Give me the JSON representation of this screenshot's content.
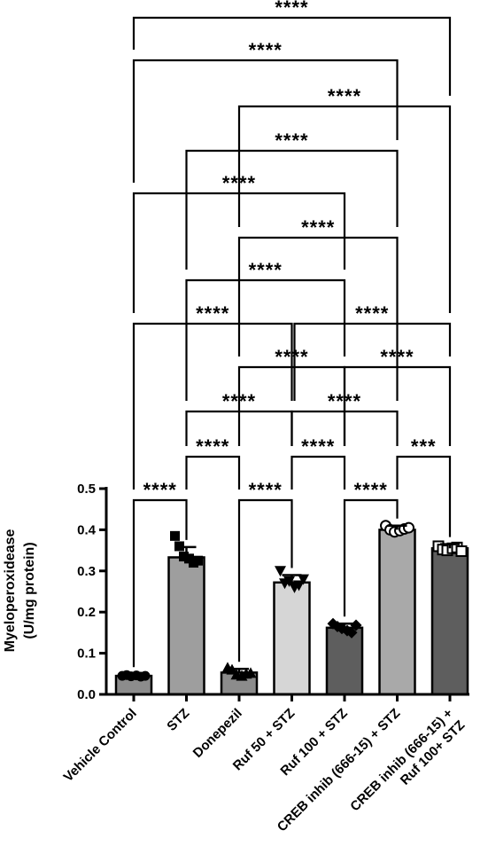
{
  "chart_data": {
    "type": "bar",
    "ylabel_line1": "Myeloperoxidease",
    "ylabel_line2": "(U/mg protein)",
    "ylim": [
      0,
      0.5
    ],
    "yticks": [
      "0.0",
      "0.1",
      "0.2",
      "0.3",
      "0.4",
      "0.5"
    ],
    "categories": [
      "Vehicle Control",
      "STZ",
      "Donepezil",
      "Ruf 50 + STZ",
      "Ruf 100 + STZ",
      "CREB inhib (666-15) + STZ",
      [
        "CREB inhib (666-15) +",
        "Ruf 100+ STZ"
      ]
    ],
    "values": [
      0.045,
      0.333,
      0.053,
      0.272,
      0.162,
      0.4,
      0.355
    ],
    "errors": [
      0.004,
      0.025,
      0.009,
      0.018,
      0.01,
      0.01,
      0.01
    ],
    "bar_colors": [
      "#8c8c8c",
      "#9e9e9e",
      "#8c8c8c",
      "#d6d6d6",
      "#5e5e5e",
      "#a9a9a9",
      "#5e5e5e"
    ],
    "marker_types": [
      "circle",
      "square",
      "triangle",
      "triangle-down",
      "diamond",
      "open-circle",
      "open-square"
    ],
    "points": [
      [
        0.045,
        0.047,
        0.044,
        0.046,
        0.043,
        0.045
      ],
      [
        0.385,
        0.36,
        0.335,
        0.33,
        0.32,
        0.325
      ],
      [
        0.065,
        0.06,
        0.048,
        0.045,
        0.05,
        0.052
      ],
      [
        0.3,
        0.27,
        0.275,
        0.26,
        0.265,
        0.28
      ],
      [
        0.172,
        0.165,
        0.16,
        0.155,
        0.15,
        0.168
      ],
      [
        0.41,
        0.4,
        0.395,
        0.398,
        0.402,
        0.405
      ],
      [
        0.36,
        0.352,
        0.35,
        0.355,
        0.357,
        0.348
      ]
    ],
    "significance": [
      {
        "from": 0,
        "to": 1,
        "label": "****"
      },
      {
        "from": 2,
        "to": 3,
        "label": "****"
      },
      {
        "from": 4,
        "to": 5,
        "label": "****"
      },
      {
        "from": 1,
        "to": 2,
        "label": "****"
      },
      {
        "from": 3,
        "to": 4,
        "label": "****"
      },
      {
        "from": 5,
        "to": 6,
        "label": "***"
      },
      {
        "from": 1,
        "to": 3,
        "label": "****"
      },
      {
        "from": 3,
        "to": 5,
        "label": "****"
      },
      {
        "from": 2,
        "to": 4,
        "label": "****"
      },
      {
        "from": 4,
        "to": 6,
        "label": "****"
      },
      {
        "from": 0,
        "to": 3,
        "label": "****"
      },
      {
        "from": 3,
        "to": 6,
        "label": "****"
      },
      {
        "from": 1,
        "to": 4,
        "label": "****"
      },
      {
        "from": 2,
        "to": 5,
        "label": "****"
      },
      {
        "from": 0,
        "to": 4,
        "label": "****"
      },
      {
        "from": 1,
        "to": 5,
        "label": "****"
      },
      {
        "from": 2,
        "to": 6,
        "label": "****"
      },
      {
        "from": 0,
        "to": 5,
        "label": "****"
      },
      {
        "from": 0,
        "to": 6,
        "label": "****"
      }
    ]
  }
}
